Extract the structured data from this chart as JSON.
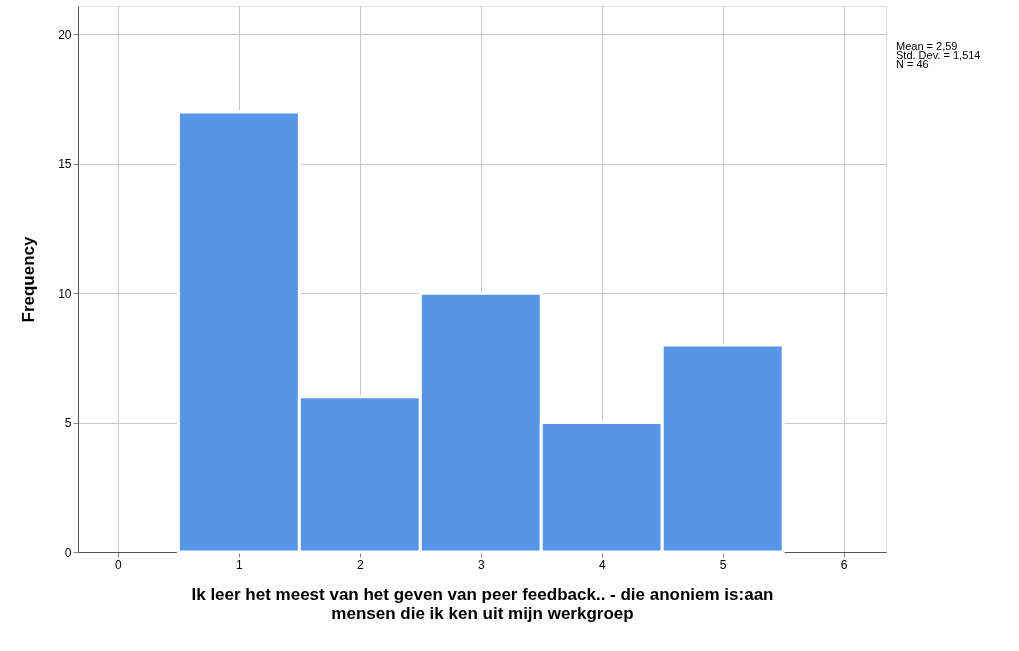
{
  "chart_data": {
    "type": "histogram",
    "xlabel": "Ik leer het meest van het geven van peer feedback.. - die anoniem is:aan\nmensen die ik ken uit mijn werkgroep",
    "ylabel": "Frequency",
    "bins": [
      0.5,
      1.5,
      2.5,
      3.5,
      4.5,
      5.5
    ],
    "values": [
      17,
      6,
      10,
      5,
      8
    ],
    "color": "#5596e6",
    "xlim": [
      -0.33,
      6.35
    ],
    "xticks": [
      0,
      1,
      2,
      3,
      4,
      5,
      6
    ],
    "ylim": [
      0,
      21.1
    ],
    "yticks": [
      0,
      5,
      10,
      15,
      20
    ],
    "grid": true,
    "annotations": [
      "Mean = 2,59",
      "Std. Dev. = 1,514",
      "N = 46"
    ]
  }
}
